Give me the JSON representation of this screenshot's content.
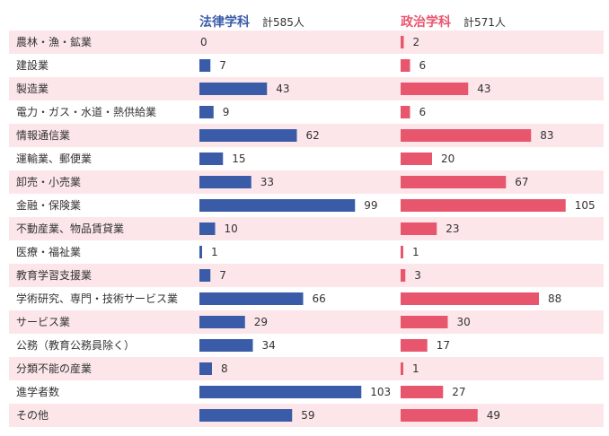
{
  "chart_data": {
    "type": "bar",
    "orientation": "horizontal",
    "categories": [
      "農林・漁・鉱業",
      "建設業",
      "製造業",
      "電力・ガス・水道・熱供給業",
      "情報通信業",
      "運輸業、郵便業",
      "卸売・小売業",
      "金融・保険業",
      "不動産業、物品賃貸業",
      "医療・福祉業",
      "教育学習支援業",
      "学術研究、専門・技術サービス業",
      "サービス業",
      "公務（教育公務員除く）",
      "分類不能の産業",
      "進学者数",
      "その他"
    ],
    "series": [
      {
        "name": "法律学科",
        "total_label": "計585人",
        "color": "#3a5ca8",
        "values": [
          0,
          7,
          43,
          9,
          62,
          15,
          33,
          99,
          10,
          1,
          7,
          66,
          29,
          34,
          8,
          103,
          59
        ]
      },
      {
        "name": "政治学科",
        "total_label": "計571人",
        "color": "#e8566e",
        "values": [
          2,
          6,
          43,
          6,
          83,
          20,
          67,
          105,
          23,
          1,
          3,
          88,
          30,
          17,
          1,
          27,
          49
        ]
      }
    ],
    "stripe_color": "#fce6ea",
    "grid": false,
    "legend": "top"
  }
}
